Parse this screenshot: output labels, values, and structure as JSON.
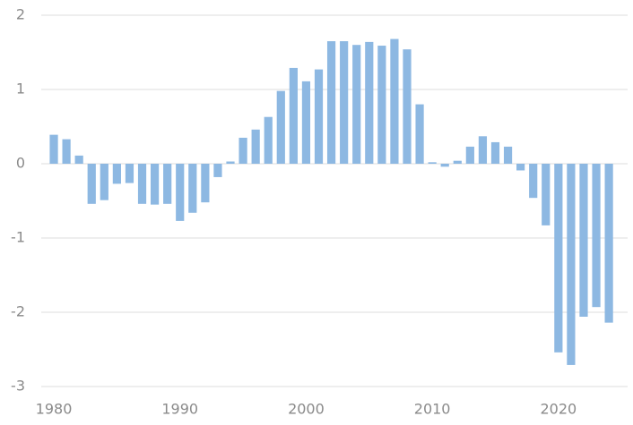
{
  "chart_data": {
    "type": "bar",
    "categories": [
      "1980",
      null,
      null,
      null,
      null,
      null,
      null,
      null,
      null,
      null,
      "1990",
      null,
      null,
      null,
      null,
      null,
      null,
      null,
      null,
      null,
      "2000",
      null,
      null,
      null,
      null,
      null,
      null,
      null,
      null,
      null,
      "2010",
      null,
      null,
      null,
      null,
      null,
      null,
      null,
      null,
      null,
      "2020",
      null,
      null,
      null,
      null
    ],
    "values": [
      0.39,
      0.33,
      0.11,
      -0.54,
      -0.49,
      -0.27,
      -0.26,
      -0.54,
      -0.55,
      -0.54,
      -0.77,
      -0.66,
      -0.52,
      -0.18,
      0.03,
      0.35,
      0.46,
      0.63,
      0.98,
      1.29,
      1.11,
      1.27,
      1.65,
      1.65,
      1.6,
      1.64,
      1.59,
      1.68,
      1.54,
      0.8,
      0.02,
      -0.04,
      0.04,
      0.23,
      0.37,
      0.29,
      0.23,
      -0.09,
      -0.46,
      -0.83,
      -2.54,
      -2.71,
      -2.06,
      -1.93,
      -2.14
    ],
    "color": "#8db8e2",
    "ylim": [
      -3,
      2
    ],
    "yticks": [
      -3,
      -2,
      -1,
      0,
      1,
      2
    ],
    "grid": true
  }
}
